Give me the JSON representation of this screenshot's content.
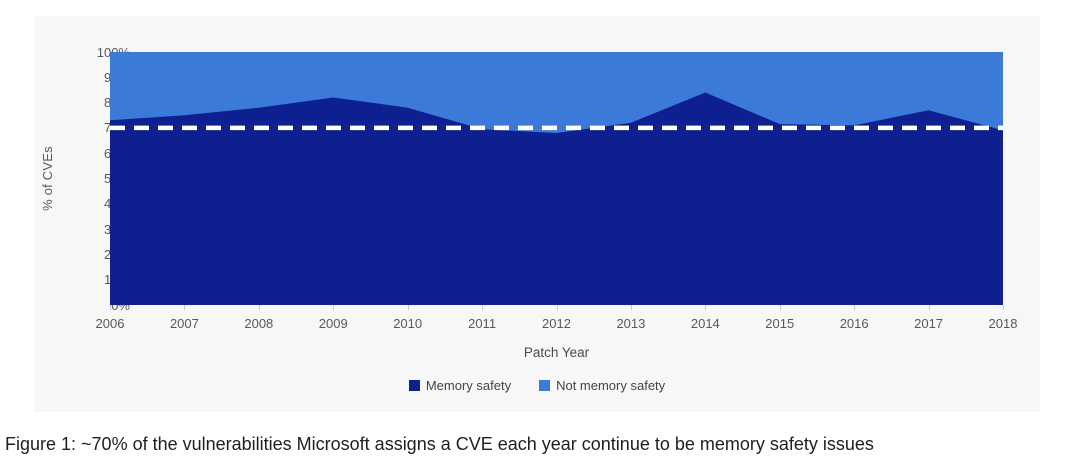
{
  "card": {
    "background": "#f7f7f7"
  },
  "chart_data": {
    "type": "area",
    "stacked": true,
    "x": [
      2006,
      2007,
      2008,
      2009,
      2010,
      2011,
      2012,
      2013,
      2014,
      2015,
      2016,
      2017,
      2018
    ],
    "series": [
      {
        "name": "Memory safety",
        "color": "#0e1f8f",
        "values": [
          73,
          75,
          78,
          82,
          78,
          69.5,
          68,
          72,
          84,
          71.5,
          71,
          77,
          69
        ]
      },
      {
        "name": "Not memory safety",
        "color": "#3b7ad9",
        "values": [
          27,
          25,
          22,
          18,
          22,
          30.5,
          32,
          28,
          16,
          28.5,
          29,
          23,
          31
        ]
      }
    ],
    "xlabel": "Patch Year",
    "ylabel": "% of CVEs",
    "ylim": [
      0,
      100
    ],
    "yticks": [
      "100%",
      "90%",
      "80%",
      "70%",
      "60%",
      "50%",
      "40%",
      "30%",
      "20%",
      "10%",
      "0%"
    ],
    "grid": false,
    "legend_position": "bottom-center",
    "reference_line": {
      "value": 70,
      "color": "#ffffff",
      "style": "dashed"
    }
  },
  "caption": "Figure 1: ~70% of the vulnerabilities Microsoft assigns a CVE each year continue to be memory safety issues"
}
